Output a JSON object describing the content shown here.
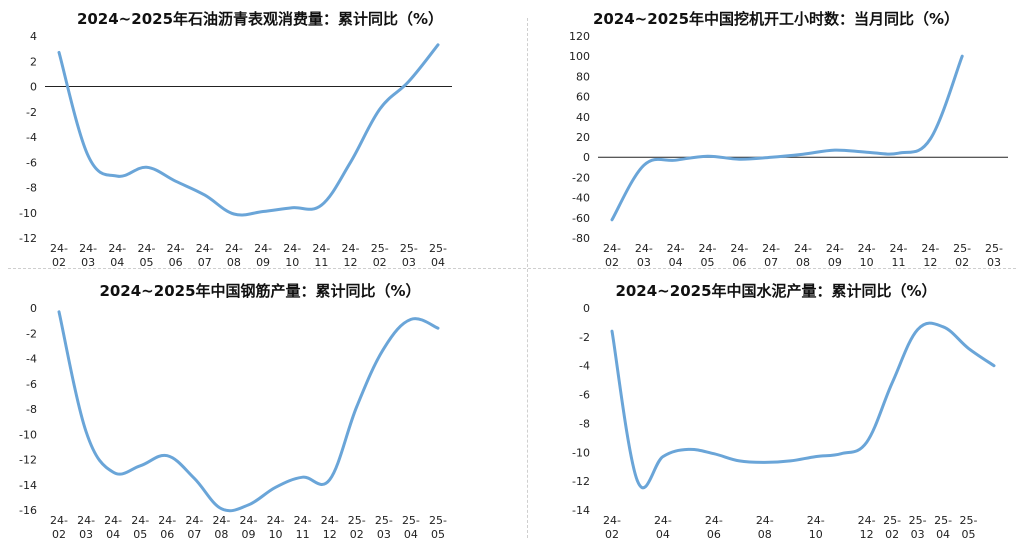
{
  "colors": {
    "line": "#6aa5d8",
    "zero": "#222222"
  },
  "chart_data": [
    {
      "type": "line",
      "title": "2024~2025年石油沥青表观消费量：累计同比（%）",
      "categories": [
        "24-02",
        "24-03",
        "24-04",
        "24-05",
        "24-06",
        "24-07",
        "24-08",
        "24-09",
        "24-10",
        "24-11",
        "24-12",
        "25-02",
        "25-03",
        "25-04"
      ],
      "values": [
        2.7,
        -5.5,
        -7.1,
        -6.4,
        -7.5,
        -8.6,
        -10.1,
        -9.9,
        -9.6,
        -9.4,
        -6.0,
        -1.8,
        0.4,
        3.3
      ],
      "ylim": [
        -12,
        4
      ],
      "yticks": [
        4,
        2,
        0,
        -2,
        -4,
        -6,
        -8,
        -10,
        -12
      ],
      "zero_line": true
    },
    {
      "type": "line",
      "title": "2024~2025年中国挖机开工小时数：当月同比（%）",
      "categories": [
        "24-02",
        "24-03",
        "24-04",
        "24-05",
        "24-06",
        "24-07",
        "24-08",
        "24-09",
        "24-10",
        "24-11",
        "24-12",
        "25-02",
        "25-03"
      ],
      "values": [
        -62,
        -8,
        -3,
        1,
        -2,
        0,
        3,
        7,
        5,
        4,
        18,
        100,
        null
      ],
      "ylim": [
        -80,
        120
      ],
      "yticks": [
        120,
        100,
        80,
        60,
        40,
        20,
        0,
        -20,
        -40,
        -60,
        -80
      ],
      "zero_line": true
    },
    {
      "type": "line",
      "title": "2024~2025年中国钢筋产量：累计同比（%）",
      "categories": [
        "24-02",
        "24-03",
        "24-04",
        "24-05",
        "24-06",
        "24-07",
        "24-08",
        "24-09",
        "24-10",
        "24-11",
        "24-12",
        "25-02",
        "25-03",
        "25-04",
        "25-05"
      ],
      "values": [
        -0.3,
        -9.8,
        -13.0,
        -12.5,
        -11.7,
        -13.5,
        -15.9,
        -15.6,
        -14.2,
        -13.4,
        -13.6,
        -7.8,
        -3.2,
        -0.9,
        -1.6
      ],
      "ylim": [
        -16,
        0
      ],
      "yticks": [
        0,
        -2,
        -4,
        -6,
        -8,
        -10,
        -12,
        -14,
        -16
      ],
      "zero_line": false
    },
    {
      "type": "line",
      "title": "2024~2025年中国水泥产量：累计同比（%）",
      "categories": [
        "24-02",
        "24-04",
        "24-06",
        "24-08",
        "24-10",
        "24-12",
        "25-02",
        "25-03",
        "25-04",
        "25-05"
      ],
      "x": [
        0,
        1,
        2,
        3,
        4,
        5,
        6,
        7,
        8,
        9,
        10,
        11,
        12,
        13,
        14,
        15
      ],
      "tick_positions": [
        0,
        2,
        4,
        6,
        8,
        10,
        11,
        12,
        13,
        14
      ],
      "values": [
        -1.6,
        -12.0,
        -10.3,
        -9.8,
        -10.1,
        -10.6,
        -10.7,
        -10.6,
        -10.3,
        -10.1,
        -9.3,
        -5.2,
        -1.5,
        -1.3,
        -2.8,
        -4.0
      ],
      "ylim": [
        -14,
        0
      ],
      "yticks": [
        0,
        -2,
        -4,
        -6,
        -8,
        -10,
        -12,
        -14
      ],
      "zero_line": false
    }
  ]
}
